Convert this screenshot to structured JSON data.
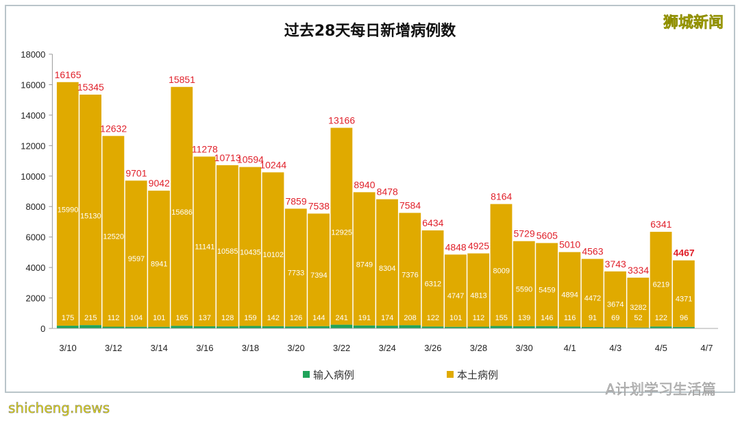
{
  "logo_text": "狮城新闻",
  "watermark": "A计划学习生活篇",
  "site_watermark": "shicheng.news",
  "chart_data": {
    "type": "bar",
    "stacked": true,
    "title": "过去28天每日新增病例数",
    "categories": [
      "3/10",
      "3/11",
      "3/12",
      "3/13",
      "3/14",
      "3/15",
      "3/16",
      "3/17",
      "3/18",
      "3/19",
      "3/20",
      "3/21",
      "3/22",
      "3/23",
      "3/24",
      "3/25",
      "3/26",
      "3/27",
      "3/28",
      "3/29",
      "3/30",
      "3/31",
      "4/1",
      "4/2",
      "4/3",
      "4/4",
      "4/5",
      "4/6"
    ],
    "x_tick_labels": [
      "3/10",
      "3/12",
      "3/14",
      "3/16",
      "3/18",
      "3/20",
      "3/22",
      "3/24",
      "3/26",
      "3/28",
      "3/30",
      "4/1",
      "4/3",
      "4/5",
      "4/7"
    ],
    "series": [
      {
        "name": "输入病例",
        "color": "#1fa35a",
        "values": [
          175,
          215,
          112,
          104,
          101,
          165,
          137,
          128,
          159,
          142,
          126,
          144,
          241,
          191,
          174,
          208,
          122,
          101,
          112,
          155,
          139,
          146,
          116,
          91,
          69,
          52,
          122,
          96
        ]
      },
      {
        "name": "本土病例",
        "color": "#e0aa00",
        "values": [
          15990,
          15130,
          12520,
          9597,
          8941,
          15686,
          11141,
          10585,
          10435,
          10102,
          7733,
          7394,
          12925,
          8749,
          8304,
          7376,
          6312,
          4747,
          4813,
          8009,
          5590,
          5459,
          4894,
          4472,
          3674,
          3282,
          6219,
          4371
        ]
      }
    ],
    "totals": [
      16165,
      15345,
      12632,
      9701,
      9042,
      15851,
      11278,
      10713,
      10594,
      10244,
      7859,
      7538,
      13166,
      8940,
      8478,
      7584,
      6434,
      4848,
      4925,
      8164,
      5729,
      5605,
      5010,
      4563,
      3743,
      3334,
      6341,
      4467
    ],
    "total_label_color": "#e0202a",
    "ylim": [
      0,
      18000
    ],
    "yticks": [
      0,
      2000,
      4000,
      6000,
      8000,
      10000,
      12000,
      14000,
      16000,
      18000
    ],
    "grid": false,
    "legend": "bottom"
  }
}
